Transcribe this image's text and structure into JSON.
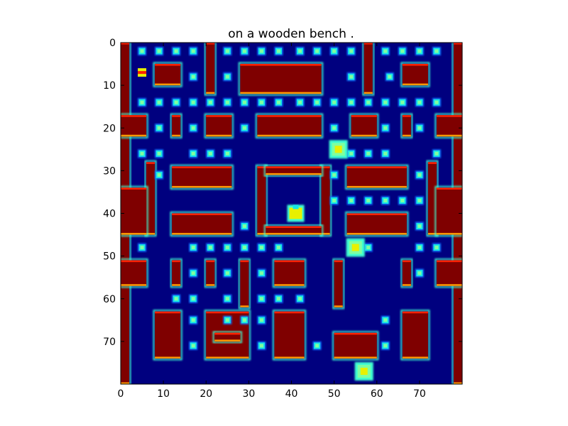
{
  "chart_data": {
    "type": "heatmap",
    "title": "on a wooden bench .",
    "xlabel": "",
    "ylabel": "",
    "xlim": [
      0,
      80
    ],
    "ylim": [
      80,
      0
    ],
    "x_ticks": [
      0,
      10,
      20,
      30,
      40,
      50,
      60,
      70
    ],
    "y_ticks": [
      0,
      10,
      20,
      30,
      40,
      50,
      60,
      70
    ],
    "grid": false,
    "colormap": "jet",
    "colors": {
      "background": "#00007f",
      "wall": "#7f0000",
      "edge_red": "#ff2200",
      "edge_orange": "#ff9900",
      "edge_yellow": "#e8f000",
      "edge_cyan": "#40ffd0",
      "edge_blue": "#1070ff",
      "pellet_outer": "#15e6e6",
      "pellet_inner": "#7fffa0"
    },
    "walls": [
      [
        0,
        0,
        2,
        80
      ],
      [
        78,
        0,
        80,
        80
      ],
      [
        20,
        0,
        22,
        12
      ],
      [
        57,
        0,
        59,
        12
      ],
      [
        28,
        5,
        47,
        12
      ],
      [
        8,
        5,
        14,
        10
      ],
      [
        66,
        5,
        72,
        10
      ],
      [
        0,
        17,
        6,
        22
      ],
      [
        74,
        17,
        80,
        22
      ],
      [
        12,
        17,
        14,
        22
      ],
      [
        20,
        17,
        26,
        22
      ],
      [
        32,
        17,
        47,
        22
      ],
      [
        54,
        17,
        60,
        22
      ],
      [
        66,
        17,
        68,
        22
      ],
      [
        6,
        28,
        8,
        45
      ],
      [
        72,
        28,
        74,
        45
      ],
      [
        12,
        29,
        26,
        34
      ],
      [
        53,
        29,
        67,
        34
      ],
      [
        0,
        34,
        6,
        45
      ],
      [
        74,
        34,
        80,
        45
      ],
      [
        32,
        29,
        34,
        45
      ],
      [
        47,
        29,
        49,
        45
      ],
      [
        34,
        29,
        47,
        31
      ],
      [
        34,
        43,
        47,
        45
      ],
      [
        12,
        40,
        26,
        45
      ],
      [
        53,
        40,
        67,
        45
      ],
      [
        0,
        51,
        6,
        57
      ],
      [
        74,
        51,
        80,
        57
      ],
      [
        12,
        51,
        14,
        57
      ],
      [
        66,
        51,
        68,
        57
      ],
      [
        20,
        51,
        22,
        57
      ],
      [
        50,
        51,
        52,
        62
      ],
      [
        28,
        51,
        30,
        62
      ],
      [
        36,
        51,
        43,
        57
      ],
      [
        8,
        63,
        14,
        74
      ],
      [
        66,
        63,
        72,
        74
      ],
      [
        20,
        63,
        30,
        74
      ],
      [
        36,
        63,
        43,
        74
      ],
      [
        50,
        68,
        60,
        74
      ],
      [
        22,
        68,
        28,
        70
      ]
    ],
    "pellets": [
      [
        5,
        2
      ],
      [
        9,
        2
      ],
      [
        13,
        2
      ],
      [
        17,
        2
      ],
      [
        25,
        2
      ],
      [
        29,
        2
      ],
      [
        33,
        2
      ],
      [
        37,
        2
      ],
      [
        42,
        2
      ],
      [
        46,
        2
      ],
      [
        50,
        2
      ],
      [
        54,
        2
      ],
      [
        62,
        2
      ],
      [
        66,
        2
      ],
      [
        70,
        2
      ],
      [
        74,
        2
      ],
      [
        17,
        8
      ],
      [
        25,
        8
      ],
      [
        54,
        8
      ],
      [
        63,
        8
      ],
      [
        5,
        14
      ],
      [
        9,
        14
      ],
      [
        13,
        14
      ],
      [
        17,
        14
      ],
      [
        21,
        14
      ],
      [
        25,
        14
      ],
      [
        29,
        14
      ],
      [
        33,
        14
      ],
      [
        37,
        14
      ],
      [
        42,
        14
      ],
      [
        46,
        14
      ],
      [
        50,
        14
      ],
      [
        54,
        14
      ],
      [
        58,
        14
      ],
      [
        62,
        14
      ],
      [
        66,
        14
      ],
      [
        70,
        14
      ],
      [
        74,
        14
      ],
      [
        9,
        20
      ],
      [
        17,
        20
      ],
      [
        29,
        20
      ],
      [
        50,
        20
      ],
      [
        62,
        20
      ],
      [
        70,
        20
      ],
      [
        5,
        26
      ],
      [
        9,
        26
      ],
      [
        17,
        26
      ],
      [
        21,
        26
      ],
      [
        25,
        26
      ],
      [
        54,
        26
      ],
      [
        58,
        26
      ],
      [
        62,
        26
      ],
      [
        74,
        26
      ],
      [
        9,
        31
      ],
      [
        50,
        31
      ],
      [
        70,
        31
      ],
      [
        50,
        37
      ],
      [
        54,
        37
      ],
      [
        58,
        37
      ],
      [
        62,
        37
      ],
      [
        66,
        37
      ],
      [
        70,
        37
      ],
      [
        29,
        43
      ],
      [
        70,
        43
      ],
      [
        5,
        48
      ],
      [
        17,
        48
      ],
      [
        21,
        48
      ],
      [
        25,
        48
      ],
      [
        29,
        48
      ],
      [
        33,
        48
      ],
      [
        37,
        48
      ],
      [
        58,
        48
      ],
      [
        70,
        48
      ],
      [
        74,
        48
      ],
      [
        17,
        54
      ],
      [
        25,
        54
      ],
      [
        33,
        54
      ],
      [
        70,
        54
      ],
      [
        13,
        60
      ],
      [
        17,
        60
      ],
      [
        25,
        60
      ],
      [
        33,
        60
      ],
      [
        37,
        60
      ],
      [
        42,
        60
      ],
      [
        17,
        65
      ],
      [
        25,
        65
      ],
      [
        29,
        65
      ],
      [
        33,
        65
      ],
      [
        62,
        65
      ],
      [
        17,
        71
      ],
      [
        33,
        71
      ],
      [
        46,
        71
      ],
      [
        62,
        71
      ]
    ],
    "sprites": [
      {
        "kind": "pacman",
        "x": 41,
        "y": 40
      },
      {
        "kind": "ghost",
        "x": 51,
        "y": 25
      },
      {
        "kind": "ghost",
        "x": 55,
        "y": 48
      },
      {
        "kind": "ghost",
        "x": 57,
        "y": 77
      },
      {
        "kind": "power-pellet",
        "x": 5,
        "y": 7
      }
    ]
  }
}
